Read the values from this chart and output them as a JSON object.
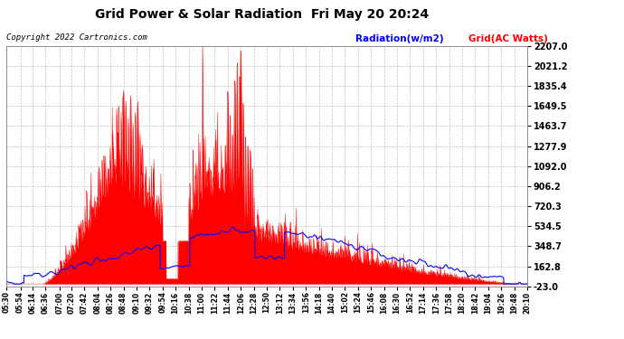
{
  "title": "Grid Power & Solar Radiation  Fri May 20 20:24",
  "copyright": "Copyright 2022 Cartronics.com",
  "legend_radiation": "Radiation(w/m2)",
  "legend_grid": "Grid(AC Watts)",
  "bg_color": "#ffffff",
  "plot_bg_color": "#ffffff",
  "grid_color": "#aaaaaa",
  "radiation_color": "#0000ff",
  "grid_ac_color": "#ff0000",
  "yticks": [
    2207.0,
    2021.2,
    1835.4,
    1649.5,
    1463.7,
    1277.9,
    1092.0,
    906.2,
    720.3,
    534.5,
    348.7,
    162.8,
    -23.0
  ],
  "ymin": -23.0,
  "ymax": 2207.0,
  "xtick_labels": [
    "05:30",
    "05:54",
    "06:14",
    "06:36",
    "07:00",
    "07:20",
    "07:42",
    "08:04",
    "08:26",
    "08:48",
    "09:10",
    "09:32",
    "09:54",
    "10:16",
    "10:38",
    "11:00",
    "11:22",
    "11:44",
    "12:06",
    "12:28",
    "12:50",
    "13:12",
    "13:34",
    "13:56",
    "14:18",
    "14:40",
    "15:02",
    "15:24",
    "15:46",
    "16:08",
    "16:30",
    "16:52",
    "17:14",
    "17:36",
    "17:58",
    "18:20",
    "18:42",
    "19:04",
    "19:26",
    "19:48",
    "20:10"
  ]
}
